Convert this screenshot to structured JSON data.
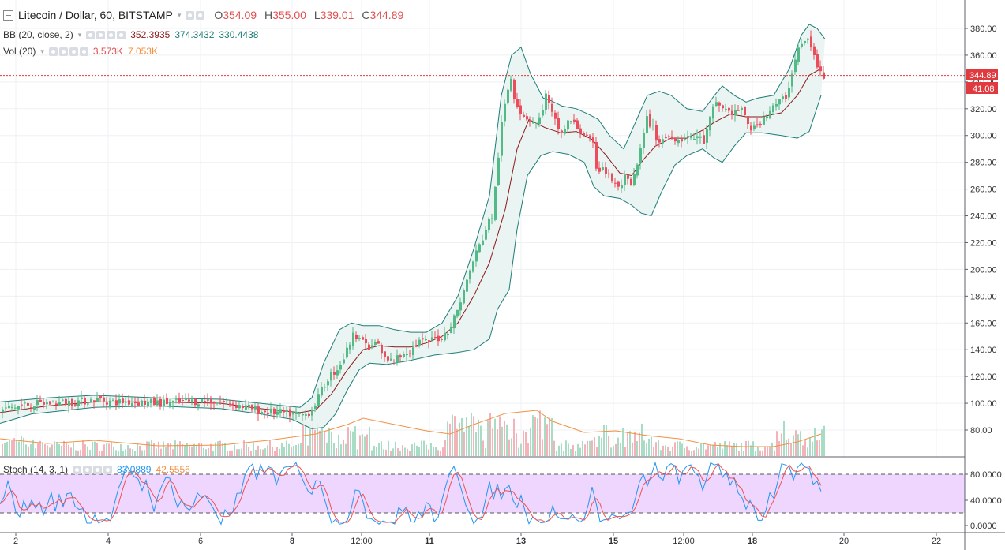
{
  "header": {
    "symbol": "Litecoin / Dollar, 60, BITSTAMP",
    "o_label": "O",
    "o_value": "354.09",
    "h_label": "H",
    "h_value": "355.00",
    "l_label": "L",
    "l_value": "339.01",
    "c_label": "C",
    "c_value": "344.89"
  },
  "bb_legend": {
    "name": "BB (20, close, 2)",
    "basis": "352.3935",
    "upper": "374.3432",
    "lower": "330.4438"
  },
  "vol_legend": {
    "name": "Vol (20)",
    "volume": "3.573K",
    "ma": "7.053K"
  },
  "stoch_legend": {
    "name": "Stoch (14, 3, 1)",
    "k": "83.0889",
    "d": "42.5556"
  },
  "price_axis": {
    "ticks": [
      "380.00",
      "360.00",
      "340.00",
      "320.00",
      "300.00",
      "280.00",
      "260.00",
      "240.00",
      "220.00",
      "200.00",
      "180.00",
      "160.00",
      "140.00",
      "120.00",
      "100.00",
      "80.00"
    ]
  },
  "last_price_label": "344.89",
  "volume_label": "41.08",
  "stoch_axis": {
    "ticks": [
      "80.0000",
      "40.0000",
      "0.0000"
    ]
  },
  "time_axis": {
    "ticks": [
      "2",
      "4",
      "6",
      "8",
      "12:00",
      "11",
      "13",
      "15",
      "12:00",
      "18",
      "20",
      "22"
    ]
  },
  "colors": {
    "up": "#53b987",
    "down": "#eb4d5c",
    "bb_band": "#1e7d76",
    "bb_basis": "#8b1a1a",
    "bb_fill": "#e8f3f1",
    "vol_up": "#a8dcc4",
    "vol_down": "#f3b3b9",
    "vol_ma": "#f29142",
    "stoch_k": "#2196f3",
    "stoch_d": "#ef5350",
    "stoch_fill": "#e8c8ff",
    "last_line": "#e0393e"
  },
  "chart_data": {
    "type": "candlestick",
    "title": "Litecoin / Dollar, 60, BITSTAMP",
    "x_ticks": [
      "2",
      "4",
      "6",
      "8",
      "12:00",
      "11",
      "13",
      "15",
      "12:00",
      "18",
      "20",
      "22"
    ],
    "ylim": [
      65,
      388
    ],
    "series_close": [
      [
        0,
        95
      ],
      [
        30,
        99
      ],
      [
        60,
        100
      ],
      [
        90,
        101
      ],
      [
        110,
        102
      ],
      [
        125,
        103
      ],
      [
        140,
        101
      ],
      [
        165,
        101
      ],
      [
        200,
        100
      ],
      [
        230,
        101
      ],
      [
        260,
        102
      ],
      [
        290,
        100
      ],
      [
        310,
        97
      ],
      [
        330,
        94
      ],
      [
        350,
        93
      ],
      [
        370,
        92
      ],
      [
        385,
        91
      ],
      [
        395,
        96
      ],
      [
        405,
        108
      ],
      [
        415,
        120
      ],
      [
        425,
        125
      ],
      [
        435,
        135
      ],
      [
        445,
        150
      ],
      [
        455,
        152
      ],
      [
        462,
        142
      ],
      [
        468,
        140
      ],
      [
        475,
        147
      ],
      [
        482,
        137
      ],
      [
        490,
        131
      ],
      [
        500,
        133
      ],
      [
        510,
        138
      ],
      [
        520,
        140
      ],
      [
        530,
        146
      ],
      [
        540,
        146
      ],
      [
        550,
        148
      ],
      [
        560,
        150
      ],
      [
        570,
        158
      ],
      [
        578,
        170
      ],
      [
        585,
        182
      ],
      [
        592,
        195
      ],
      [
        600,
        210
      ],
      [
        608,
        220
      ],
      [
        615,
        232
      ],
      [
        622,
        240
      ],
      [
        628,
        270
      ],
      [
        632,
        300
      ],
      [
        637,
        320
      ],
      [
        641,
        330
      ],
      [
        645,
        347
      ],
      [
        650,
        330
      ],
      [
        656,
        320
      ],
      [
        662,
        315
      ],
      [
        670,
        312
      ],
      [
        680,
        308
      ],
      [
        690,
        330
      ],
      [
        700,
        312
      ],
      [
        710,
        302
      ],
      [
        720,
        312
      ],
      [
        730,
        306
      ],
      [
        740,
        300
      ],
      [
        750,
        292
      ],
      [
        755,
        273
      ],
      [
        762,
        277
      ],
      [
        768,
        270
      ],
      [
        775,
        266
      ],
      [
        782,
        260
      ],
      [
        790,
        268
      ],
      [
        798,
        262
      ],
      [
        805,
        275
      ],
      [
        812,
        295
      ],
      [
        818,
        312
      ],
      [
        825,
        307
      ],
      [
        832,
        295
      ],
      [
        840,
        298
      ],
      [
        850,
        300
      ],
      [
        860,
        296
      ],
      [
        868,
        301
      ],
      [
        875,
        296
      ],
      [
        882,
        300
      ],
      [
        890,
        295
      ],
      [
        898,
        312
      ],
      [
        905,
        325
      ],
      [
        912,
        322
      ],
      [
        920,
        318
      ],
      [
        928,
        317
      ],
      [
        936,
        320
      ],
      [
        944,
        312
      ],
      [
        952,
        303
      ],
      [
        958,
        308
      ],
      [
        966,
        314
      ],
      [
        975,
        319
      ],
      [
        985,
        325
      ],
      [
        995,
        330
      ],
      [
        1003,
        350
      ],
      [
        1010,
        365
      ],
      [
        1018,
        370
      ],
      [
        1024,
        372
      ],
      [
        1030,
        358
      ],
      [
        1036,
        348
      ],
      [
        1040,
        345
      ],
      [
        1044,
        344.89
      ]
    ],
    "bb_upper": [
      [
        0,
        101
      ],
      [
        60,
        104
      ],
      [
        120,
        106
      ],
      [
        200,
        104
      ],
      [
        280,
        103
      ],
      [
        330,
        100
      ],
      [
        380,
        97
      ],
      [
        395,
        104
      ],
      [
        410,
        130
      ],
      [
        430,
        155
      ],
      [
        445,
        160
      ],
      [
        460,
        158
      ],
      [
        480,
        158
      ],
      [
        500,
        155
      ],
      [
        520,
        153
      ],
      [
        540,
        153
      ],
      [
        560,
        160
      ],
      [
        580,
        180
      ],
      [
        600,
        215
      ],
      [
        620,
        255
      ],
      [
        635,
        330
      ],
      [
        648,
        360
      ],
      [
        660,
        366
      ],
      [
        672,
        346
      ],
      [
        688,
        328
      ],
      [
        698,
        326
      ],
      [
        712,
        322
      ],
      [
        730,
        320
      ],
      [
        745,
        316
      ],
      [
        758,
        312
      ],
      [
        772,
        300
      ],
      [
        790,
        290
      ],
      [
        805,
        310
      ],
      [
        820,
        330
      ],
      [
        835,
        333
      ],
      [
        850,
        330
      ],
      [
        870,
        320
      ],
      [
        890,
        318
      ],
      [
        905,
        330
      ],
      [
        915,
        337
      ],
      [
        930,
        330
      ],
      [
        945,
        325
      ],
      [
        960,
        328
      ],
      [
        980,
        330
      ],
      [
        1000,
        350
      ],
      [
        1015,
        375
      ],
      [
        1025,
        383
      ],
      [
        1035,
        380
      ],
      [
        1045,
        372
      ]
    ],
    "bb_lower": [
      [
        0,
        85
      ],
      [
        40,
        92
      ],
      [
        120,
        97
      ],
      [
        200,
        98
      ],
      [
        280,
        96
      ],
      [
        330,
        92
      ],
      [
        370,
        88
      ],
      [
        395,
        81
      ],
      [
        410,
        82
      ],
      [
        425,
        92
      ],
      [
        440,
        110
      ],
      [
        455,
        125
      ],
      [
        468,
        130
      ],
      [
        490,
        129
      ],
      [
        520,
        132
      ],
      [
        550,
        136
      ],
      [
        580,
        138
      ],
      [
        600,
        140
      ],
      [
        620,
        148
      ],
      [
        630,
        170
      ],
      [
        645,
        185
      ],
      [
        655,
        230
      ],
      [
        668,
        270
      ],
      [
        685,
        285
      ],
      [
        700,
        288
      ],
      [
        720,
        286
      ],
      [
        740,
        280
      ],
      [
        752,
        262
      ],
      [
        765,
        255
      ],
      [
        785,
        253
      ],
      [
        800,
        248
      ],
      [
        812,
        242
      ],
      [
        825,
        240
      ],
      [
        838,
        258
      ],
      [
        855,
        278
      ],
      [
        870,
        285
      ],
      [
        890,
        290
      ],
      [
        905,
        283
      ],
      [
        915,
        280
      ],
      [
        930,
        292
      ],
      [
        945,
        302
      ],
      [
        965,
        302
      ],
      [
        990,
        300
      ],
      [
        1010,
        298
      ],
      [
        1025,
        303
      ],
      [
        1040,
        330
      ]
    ],
    "bb_basis": [
      [
        0,
        93
      ],
      [
        60,
        98
      ],
      [
        120,
        101
      ],
      [
        200,
        101
      ],
      [
        280,
        100
      ],
      [
        330,
        96
      ],
      [
        380,
        93
      ],
      [
        400,
        95
      ],
      [
        420,
        107
      ],
      [
        440,
        125
      ],
      [
        460,
        140
      ],
      [
        480,
        143
      ],
      [
        500,
        142
      ],
      [
        520,
        142
      ],
      [
        540,
        145
      ],
      [
        560,
        150
      ],
      [
        580,
        160
      ],
      [
        600,
        180
      ],
      [
        620,
        205
      ],
      [
        640,
        245
      ],
      [
        655,
        290
      ],
      [
        670,
        312
      ],
      [
        690,
        306
      ],
      [
        710,
        302
      ],
      [
        730,
        303
      ],
      [
        750,
        297
      ],
      [
        768,
        285
      ],
      [
        785,
        272
      ],
      [
        800,
        270
      ],
      [
        815,
        282
      ],
      [
        830,
        292
      ],
      [
        850,
        298
      ],
      [
        870,
        298
      ],
      [
        890,
        304
      ],
      [
        905,
        310
      ],
      [
        925,
        316
      ],
      [
        945,
        314
      ],
      [
        965,
        314
      ],
      [
        990,
        317
      ],
      [
        1010,
        330
      ],
      [
        1025,
        345
      ],
      [
        1040,
        350
      ]
    ],
    "stoch": {
      "ylim": [
        0,
        100
      ],
      "levels": [
        80,
        20
      ],
      "k_last": 83.0889,
      "d_last": 42.5556
    }
  }
}
